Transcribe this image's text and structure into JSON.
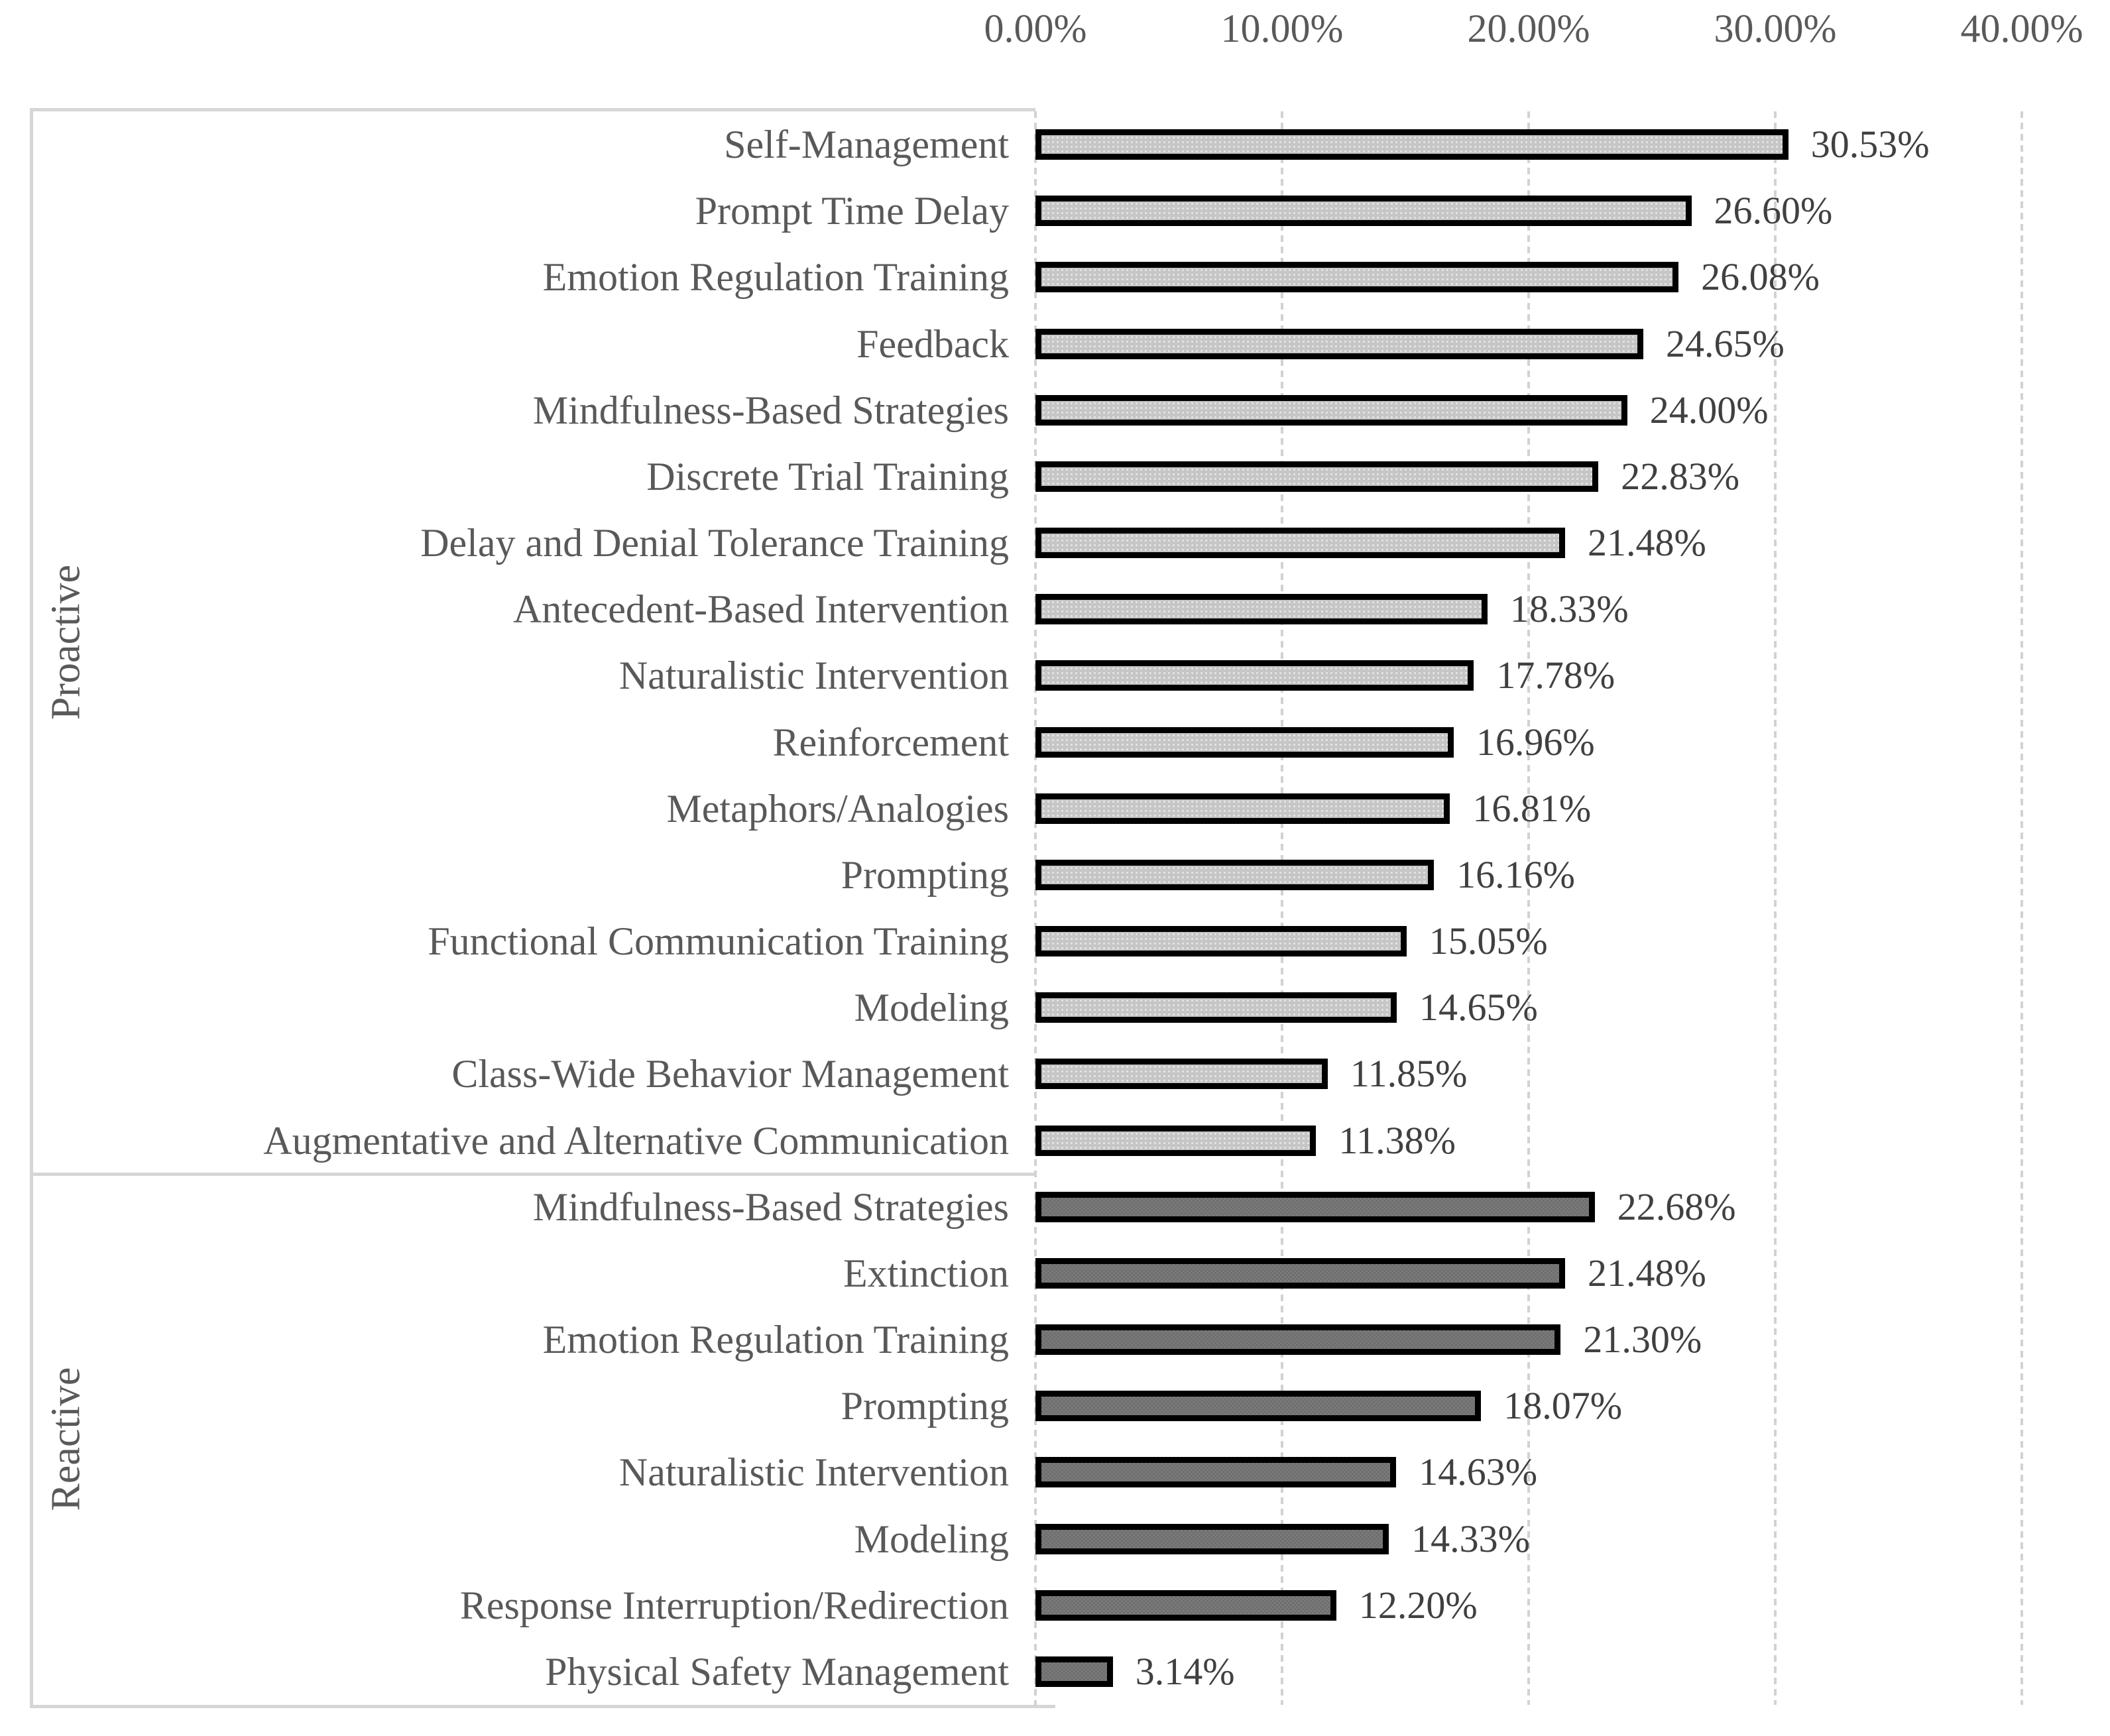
{
  "chart_data": {
    "type": "bar",
    "orientation": "horizontal",
    "title": "",
    "xlabel": "",
    "ylabel": "",
    "grid": "vertical-dashed",
    "legend": "none",
    "x_axis": {
      "position": "top",
      "min": 0,
      "max": 40,
      "tick_values": [
        0,
        10,
        20,
        30,
        40
      ],
      "tick_labels": [
        "0.00%",
        "10.00%",
        "20.00%",
        "30.00%",
        "40.00%"
      ]
    },
    "groups": [
      {
        "label": "Proactive",
        "bar_style": "light",
        "items": [
          {
            "category": "Self-Management",
            "value": 30.53,
            "value_label": "30.53%"
          },
          {
            "category": "Prompt Time Delay",
            "value": 26.6,
            "value_label": "26.60%"
          },
          {
            "category": "Emotion Regulation Training",
            "value": 26.08,
            "value_label": "26.08%"
          },
          {
            "category": "Feedback",
            "value": 24.65,
            "value_label": "24.65%"
          },
          {
            "category": "Mindfulness-Based Strategies",
            "value": 24.0,
            "value_label": "24.00%"
          },
          {
            "category": "Discrete Trial Training",
            "value": 22.83,
            "value_label": "22.83%"
          },
          {
            "category": "Delay and Denial Tolerance Training",
            "value": 21.48,
            "value_label": "21.48%"
          },
          {
            "category": "Antecedent-Based Intervention",
            "value": 18.33,
            "value_label": "18.33%"
          },
          {
            "category": "Naturalistic Intervention",
            "value": 17.78,
            "value_label": "17.78%"
          },
          {
            "category": "Reinforcement",
            "value": 16.96,
            "value_label": "16.96%"
          },
          {
            "category": "Metaphors/Analogies",
            "value": 16.81,
            "value_label": "16.81%"
          },
          {
            "category": "Prompting",
            "value": 16.16,
            "value_label": "16.16%"
          },
          {
            "category": "Functional Communication Training",
            "value": 15.05,
            "value_label": "15.05%"
          },
          {
            "category": "Modeling",
            "value": 14.65,
            "value_label": "14.65%"
          },
          {
            "category": "Class-Wide Behavior Management",
            "value": 11.85,
            "value_label": "11.85%"
          },
          {
            "category": "Augmentative and Alternative Communication",
            "value": 11.38,
            "value_label": "11.38%"
          }
        ]
      },
      {
        "label": "Reactive",
        "bar_style": "dark",
        "items": [
          {
            "category": "Mindfulness-Based Strategies",
            "value": 22.68,
            "value_label": "22.68%"
          },
          {
            "category": "Extinction",
            "value": 21.48,
            "value_label": "21.48%"
          },
          {
            "category": "Emotion Regulation Training",
            "value": 21.3,
            "value_label": "21.30%"
          },
          {
            "category": "Prompting",
            "value": 18.07,
            "value_label": "18.07%"
          },
          {
            "category": "Naturalistic Intervention",
            "value": 14.63,
            "value_label": "14.63%"
          },
          {
            "category": "Modeling",
            "value": 14.33,
            "value_label": "14.33%"
          },
          {
            "category": "Response Interruption/Redirection",
            "value": 12.2,
            "value_label": "12.20%"
          },
          {
            "category": "Physical Safety Management",
            "value": 3.14,
            "value_label": "3.14%"
          }
        ]
      }
    ],
    "colors": {
      "background": "#ffffff",
      "bar_border": "#000000",
      "bar_fill_light": "#c6c6c6",
      "bar_pattern_light": "#e9e9e9",
      "bar_fill_dark": "#7a7a7a",
      "bar_pattern_dark": "#6e6e6e",
      "gridline": "#d2d2d2",
      "frame": "#d6d6d6",
      "label_text": "#595959",
      "value_text": "#404040"
    }
  }
}
